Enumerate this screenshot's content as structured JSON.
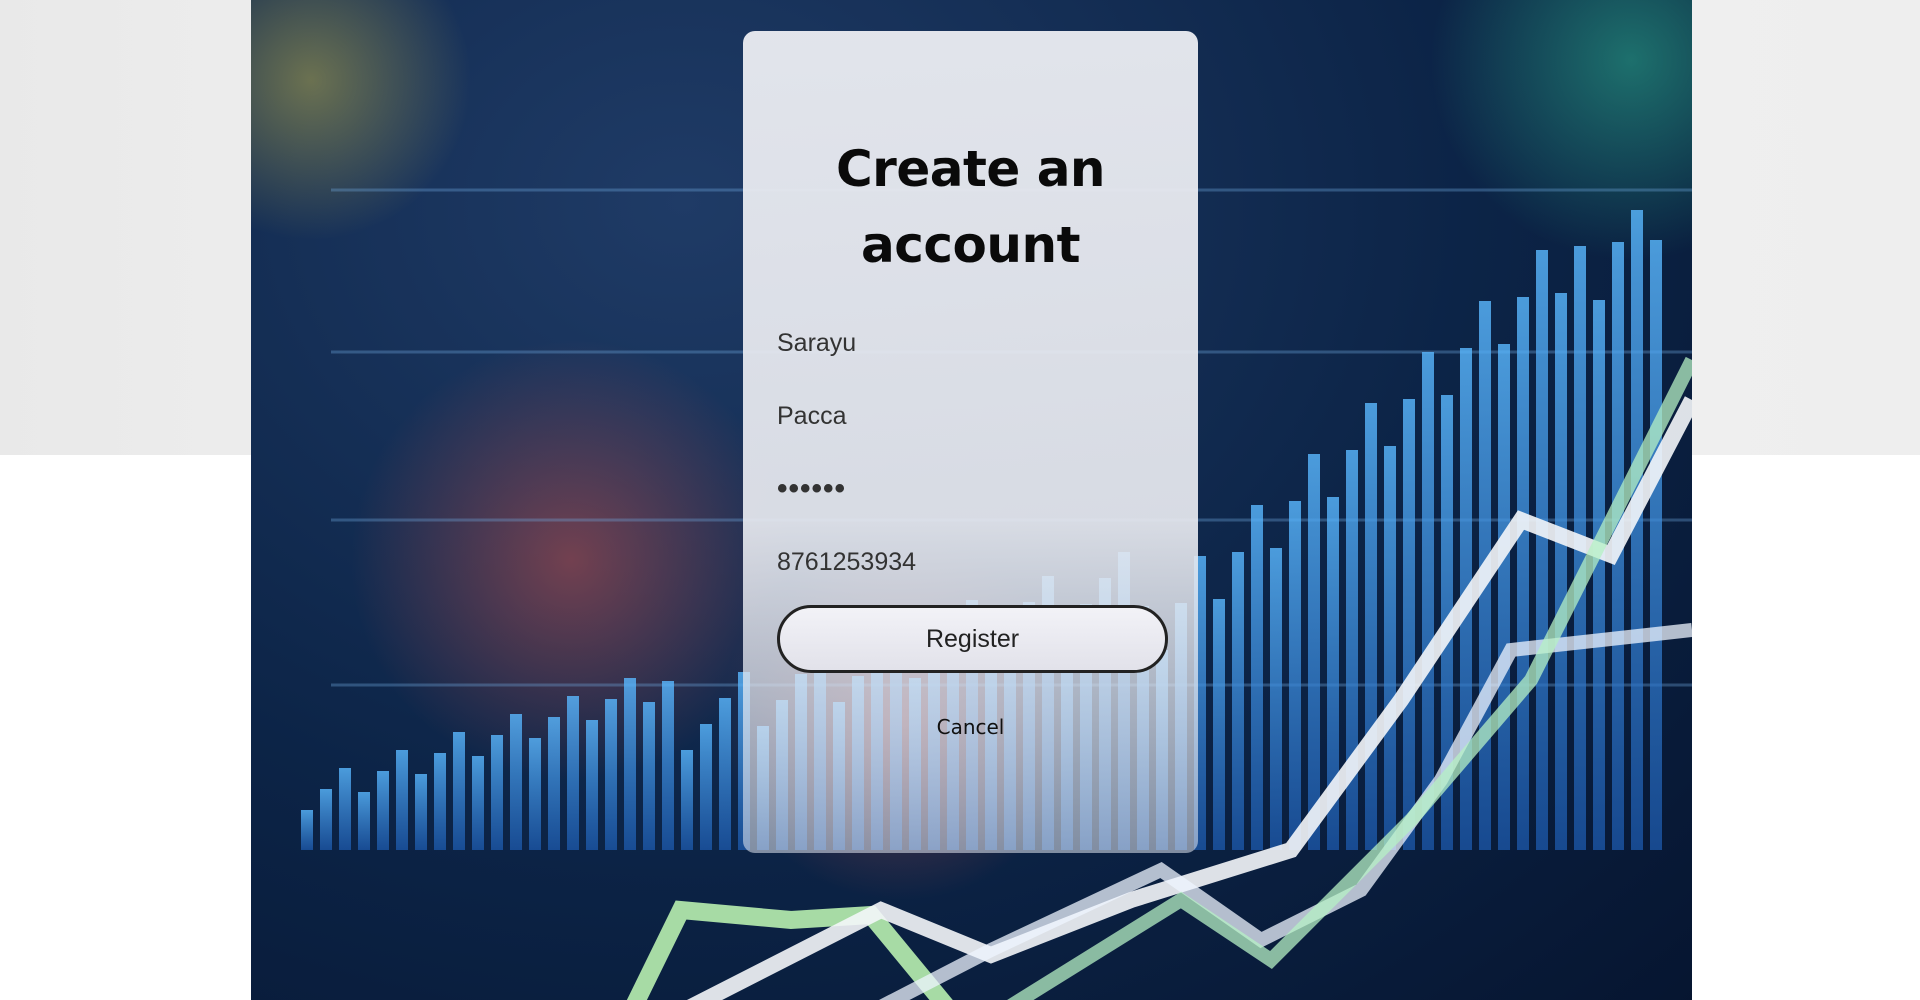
{
  "form": {
    "title": "Create an account",
    "first_name_value": "Sarayu",
    "last_name_value": "Pacca",
    "password_value": "••••••",
    "phone_value": "8761253934",
    "register_label": "Register",
    "cancel_label": "Cancel"
  },
  "colors": {
    "card_bg": "#e8eaf0",
    "button_border": "#222222",
    "title_color": "#0a0a0a"
  }
}
